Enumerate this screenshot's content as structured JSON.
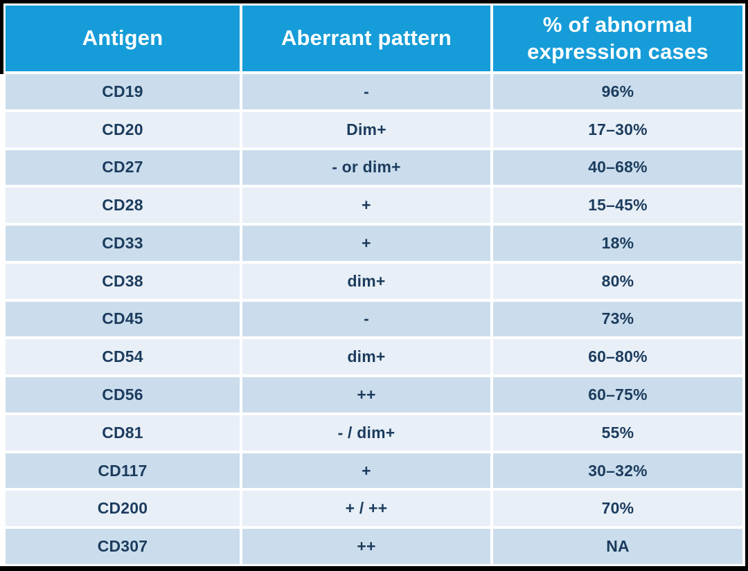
{
  "table": {
    "columns": [
      "Antigen",
      "Aberrant pattern",
      "% of abnormal expression cases"
    ],
    "rows": [
      {
        "antigen": "CD19",
        "pattern": "-",
        "percent": "96%"
      },
      {
        "antigen": "CD20",
        "pattern": "Dim+",
        "percent": "17–30%"
      },
      {
        "antigen": "CD27",
        "pattern": "- or dim+",
        "percent": "40–68%"
      },
      {
        "antigen": "CD28",
        "pattern": "+",
        "percent": "15–45%"
      },
      {
        "antigen": "CD33",
        "pattern": "+",
        "percent": "18%"
      },
      {
        "antigen": "CD38",
        "pattern": "dim+",
        "percent": "80%"
      },
      {
        "antigen": "CD45",
        "pattern": "-",
        "percent": "73%"
      },
      {
        "antigen": "CD54",
        "pattern": "dim+",
        "percent": "60–80%"
      },
      {
        "antigen": "CD56",
        "pattern": "++",
        "percent": "60–75%"
      },
      {
        "antigen": "CD81",
        "pattern": "- / dim+",
        "percent": "55%"
      },
      {
        "antigen": "CD117",
        "pattern": "+",
        "percent": "30–32%"
      },
      {
        "antigen": "CD200",
        "pattern": "+ / ++",
        "percent": "70%"
      },
      {
        "antigen": "CD307",
        "pattern": "++",
        "percent": "NA"
      }
    ]
  },
  "colors": {
    "header_bg": "#169CD8",
    "row_dark": "#CBDDEC",
    "row_light": "#E8EFF7",
    "text": "#1C3C5E",
    "header_text": "#FFFFFF",
    "frame": "#000000"
  }
}
